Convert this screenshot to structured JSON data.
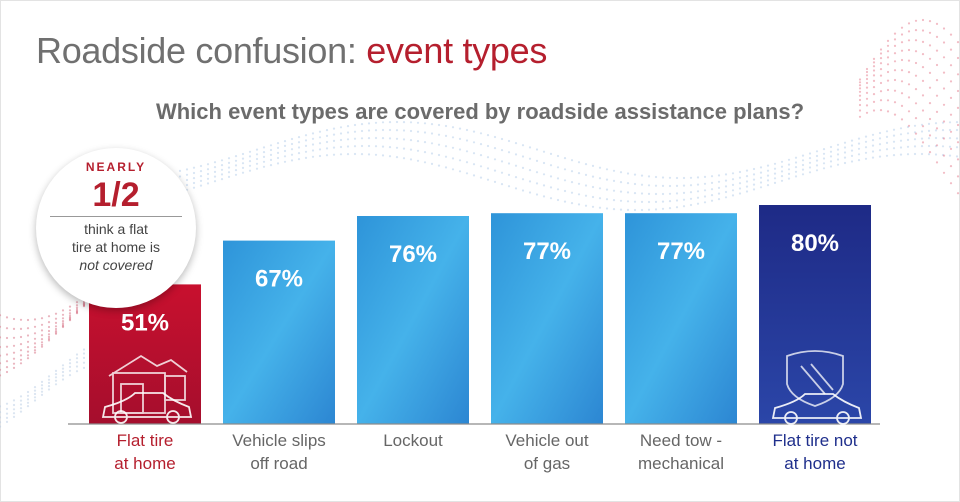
{
  "title": {
    "main": "Roadside confusion: ",
    "accent": "event types"
  },
  "subtitle": "Which event types are covered by roadside assistance plans?",
  "callout": {
    "kicker": "NEARLY",
    "value": "1/2",
    "line1": "think a flat",
    "line2": "tire at home is",
    "line3": "not covered"
  },
  "colors": {
    "red_bar": "#b8102f",
    "blue_bar": "#2a8fd6",
    "navy_bar": "#1f2f8c",
    "title_gray": "#707070",
    "accent_red": "#b51f2e"
  },
  "icons": {
    "home_bar": [
      "house-icon",
      "car-icon"
    ],
    "away_bar": [
      "highway-shield-icon",
      "car-icon"
    ]
  },
  "chart_data": {
    "type": "bar",
    "title": "Which event types are covered by roadside assistance plans?",
    "categories": [
      [
        "Flat tire",
        "at home"
      ],
      [
        "Vehicle slips",
        "off road"
      ],
      [
        "Lockout"
      ],
      [
        "Vehicle out",
        "of gas"
      ],
      [
        "Need tow -",
        "mechanical"
      ],
      [
        "Flat tire not",
        "at home"
      ]
    ],
    "values": [
      51,
      67,
      76,
      77,
      77,
      80
    ],
    "value_labels": [
      "51%",
      "67%",
      "76%",
      "77%",
      "77%",
      "80%"
    ],
    "bar_styles": [
      "red",
      "blue",
      "blue",
      "blue",
      "blue",
      "navy"
    ],
    "ylim": [
      0,
      80
    ],
    "xlabel": "",
    "ylabel": "",
    "grid": false,
    "legend": "none"
  }
}
